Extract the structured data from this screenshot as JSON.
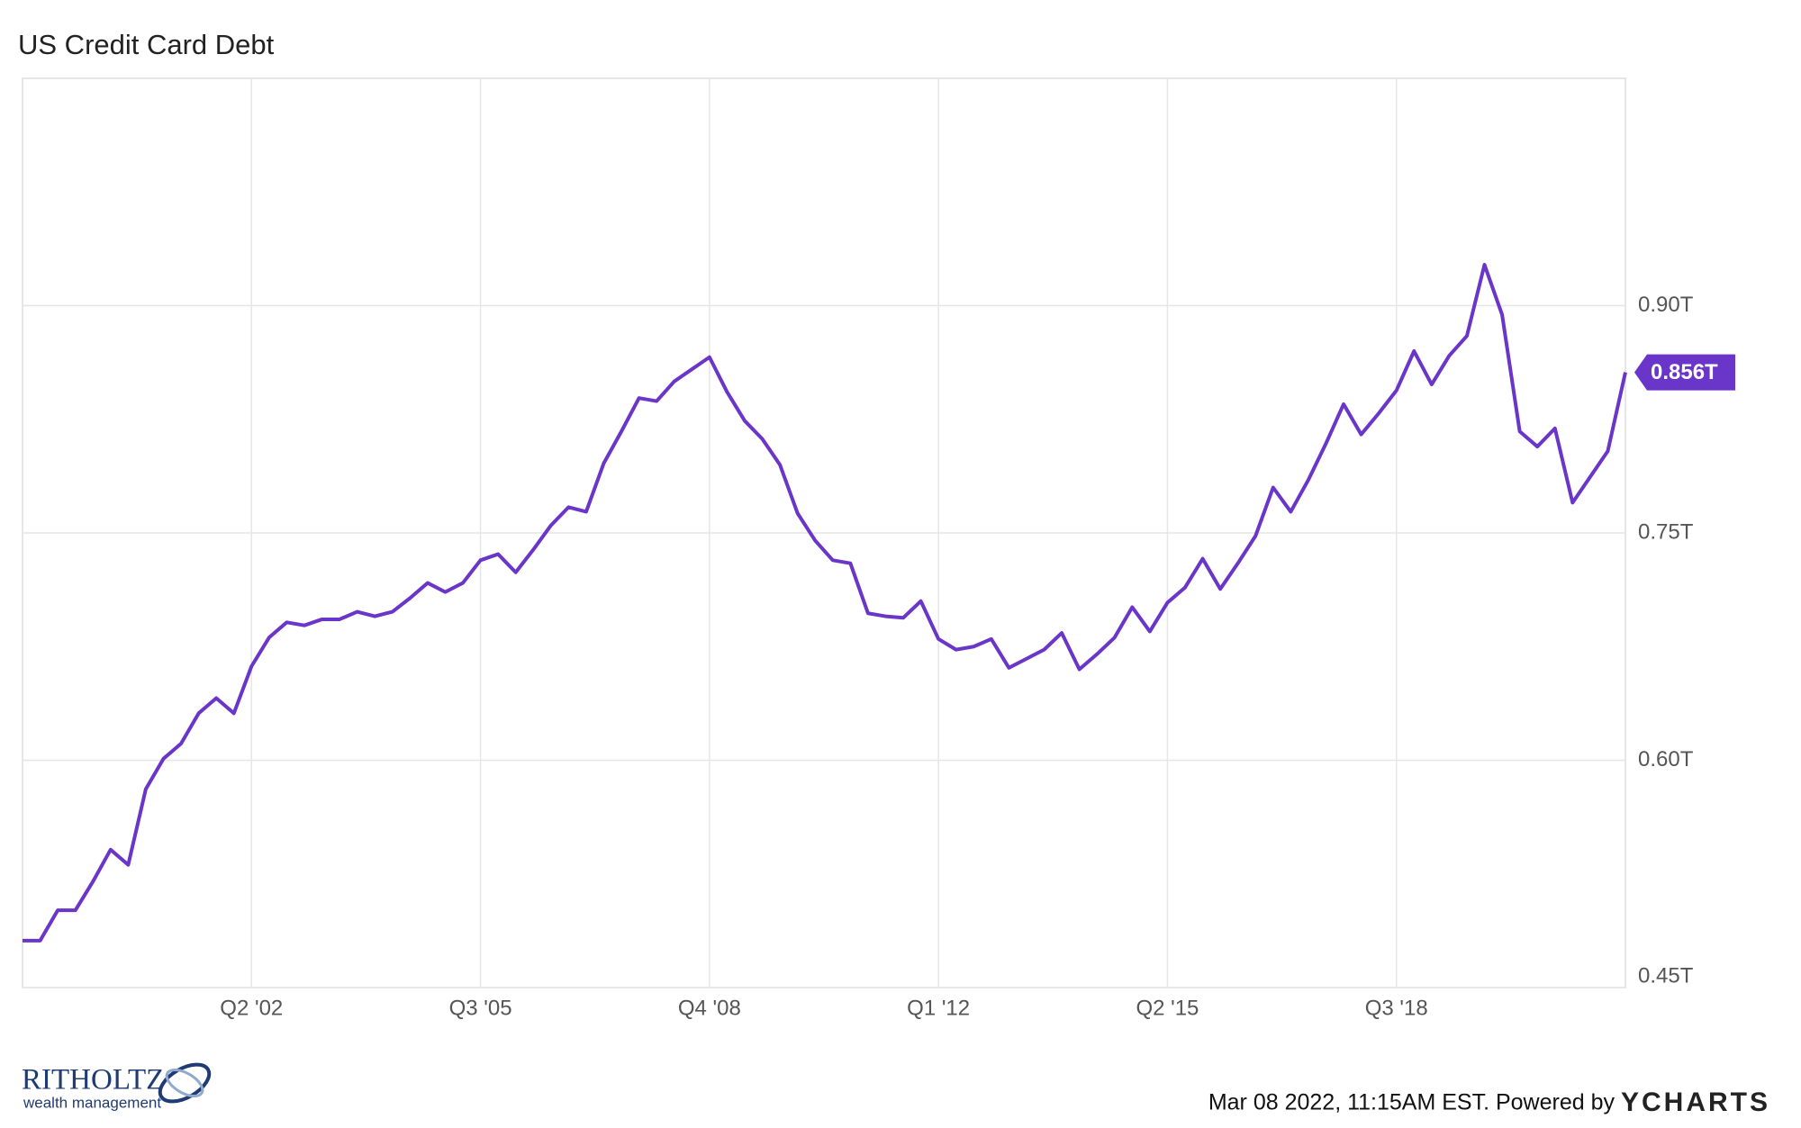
{
  "chart_data": {
    "type": "line",
    "title": "US Credit Card Debt",
    "color": "#6a35c9",
    "categories": [
      null,
      null,
      null,
      null,
      null,
      null,
      null,
      null,
      null,
      null,
      null,
      null,
      null,
      "Q2 '02",
      null,
      null,
      null,
      null,
      null,
      null,
      null,
      null,
      null,
      null,
      null,
      null,
      "Q3 '05",
      null,
      null,
      null,
      null,
      null,
      null,
      null,
      null,
      null,
      null,
      null,
      null,
      "Q4 '08",
      null,
      null,
      null,
      null,
      null,
      null,
      null,
      null,
      null,
      null,
      null,
      null,
      "Q1 '12",
      null,
      null,
      null,
      null,
      null,
      null,
      null,
      null,
      null,
      null,
      null,
      null,
      "Q2 '15",
      null,
      null,
      null,
      null,
      null,
      null,
      null,
      null,
      null,
      null,
      null,
      null,
      "Q3 '18",
      null,
      null,
      null,
      null,
      null,
      null,
      null,
      null,
      null,
      null,
      null,
      null,
      null
    ],
    "values": [
      0.481,
      0.481,
      0.501,
      0.501,
      0.52,
      0.541,
      0.531,
      0.581,
      0.601,
      0.611,
      0.631,
      0.641,
      0.631,
      0.662,
      0.681,
      0.691,
      0.689,
      0.693,
      0.693,
      0.698,
      0.695,
      0.698,
      0.707,
      0.717,
      0.711,
      0.717,
      0.732,
      0.736,
      0.724,
      0.739,
      0.755,
      0.767,
      0.764,
      0.796,
      0.817,
      0.839,
      0.837,
      0.85,
      0.858,
      0.866,
      0.843,
      0.824,
      0.812,
      0.795,
      0.763,
      0.745,
      0.732,
      0.73,
      0.697,
      0.695,
      0.694,
      0.705,
      0.68,
      0.673,
      0.675,
      0.68,
      0.661,
      0.667,
      0.673,
      0.684,
      0.66,
      0.67,
      0.681,
      0.701,
      0.685,
      0.704,
      0.714,
      0.733,
      0.713,
      0.73,
      0.748,
      0.78,
      0.764,
      0.785,
      0.809,
      0.835,
      0.815,
      0.829,
      0.844,
      0.87,
      0.848,
      0.867,
      0.88,
      0.927,
      0.894,
      0.817,
      0.807,
      0.819,
      0.77,
      0.787,
      0.804,
      0.856
    ],
    "value_labels": [
      null,
      null,
      null,
      null,
      null,
      null,
      null,
      null,
      null,
      null,
      null,
      null,
      null,
      null,
      null,
      null,
      null,
      null,
      null,
      null,
      null,
      null,
      null,
      null,
      null,
      null,
      null,
      null,
      null,
      null,
      null,
      null,
      null,
      null,
      null,
      null,
      null,
      null,
      null,
      null,
      null,
      null,
      null,
      null,
      null,
      null,
      null,
      null,
      null,
      null,
      null,
      null,
      null,
      null,
      null,
      null,
      null,
      null,
      null,
      null,
      null,
      null,
      null,
      null,
      null,
      null,
      null,
      null,
      null,
      null,
      null,
      null,
      null,
      null,
      null,
      null,
      null,
      null,
      null,
      null,
      null,
      null,
      null,
      null,
      null,
      null,
      null,
      null,
      null,
      null,
      null,
      "0.856T"
    ],
    "ylim": [
      0.45,
      1.05
    ],
    "yticks": [
      {
        "value": 0.45,
        "label": "0.45T"
      },
      {
        "value": 0.6,
        "label": "0.60T"
      },
      {
        "value": 0.75,
        "label": "0.75T"
      },
      {
        "value": 0.9,
        "label": "0.90T"
      }
    ],
    "grid": true,
    "logo_text": "RITHOLTZ",
    "logo_subtext": "wealth management",
    "timestamp": "Mar 08 2022, 11:15AM EST. Powered by",
    "brand": "YCHARTS"
  }
}
